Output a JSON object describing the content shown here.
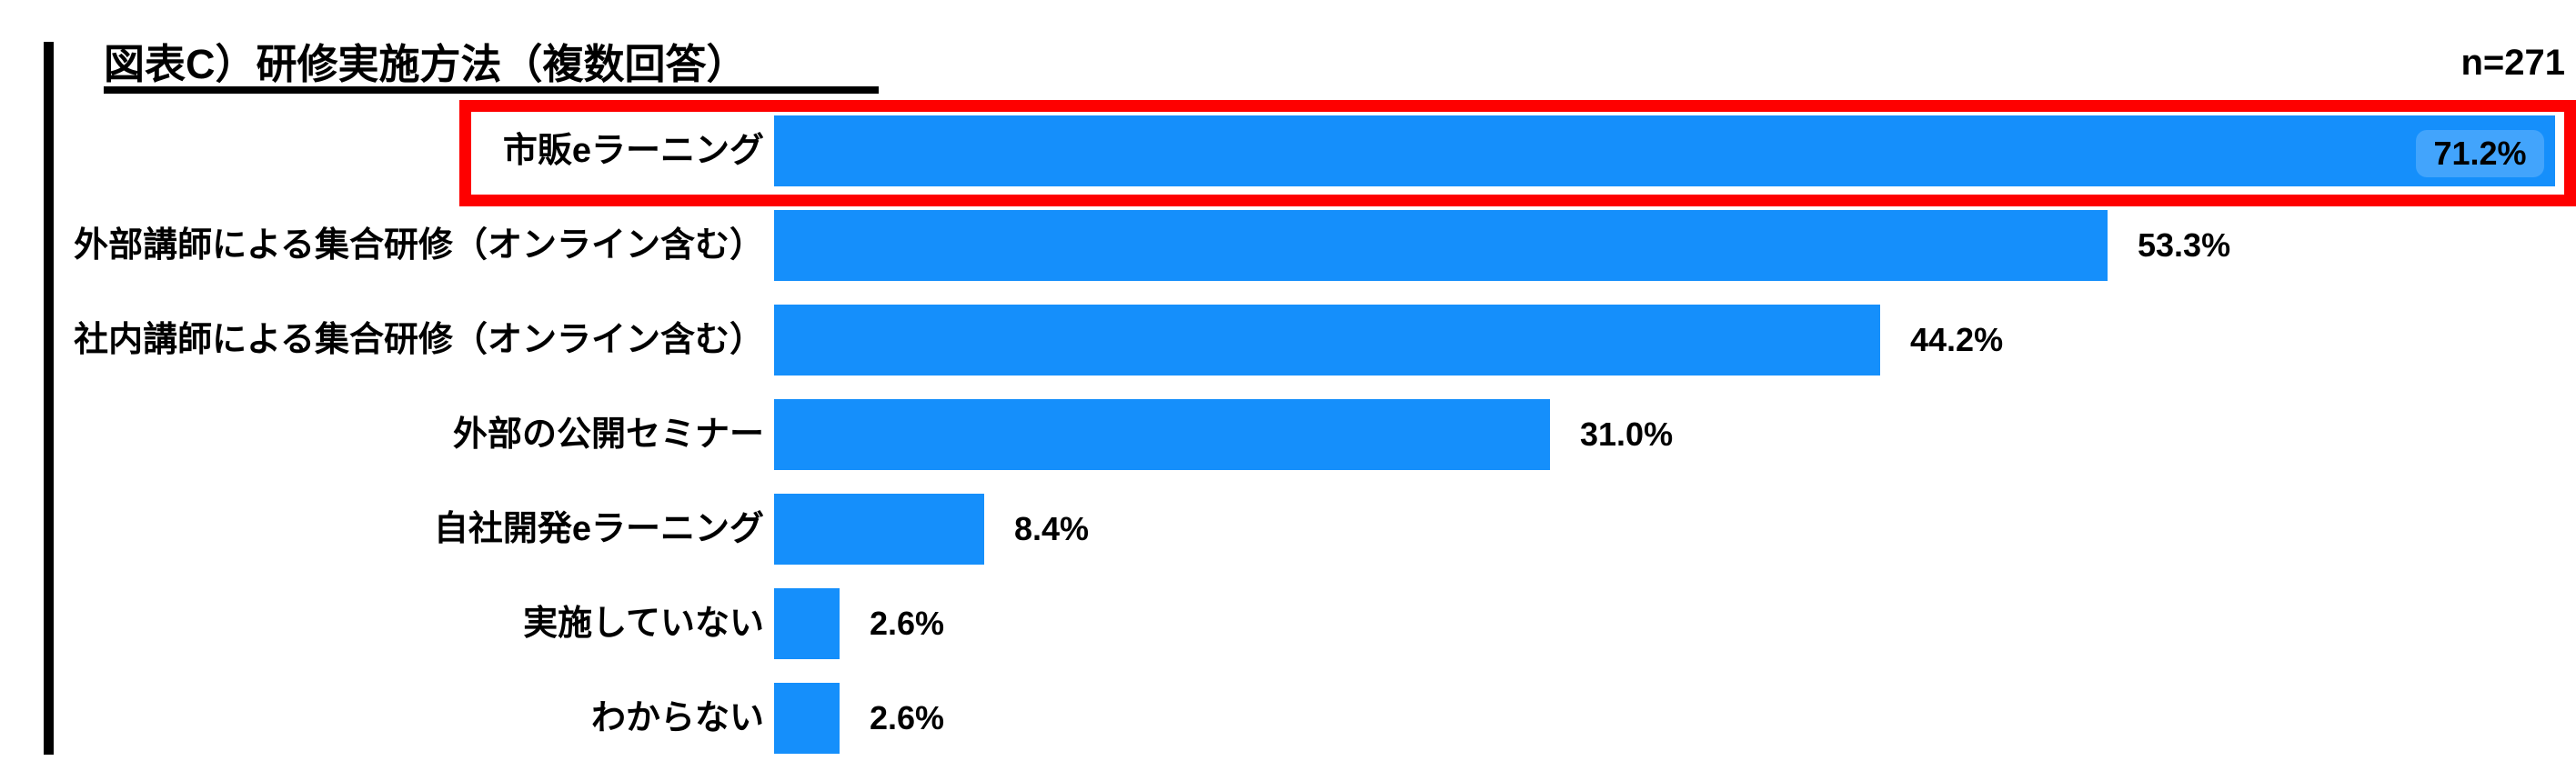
{
  "header": {
    "title": "図表C）研修実施方法（複数回答）",
    "sample_size": "n=271"
  },
  "chart_data": {
    "type": "bar",
    "orientation": "horizontal",
    "title": "図表C）研修実施方法（複数回答）",
    "sample_size": "n=271",
    "categories": [
      "市販eラーニング",
      "外部講師による集合研修（オンライン含む）",
      "社内講師による集合研修（オンライン含む）",
      "外部の公開セミナー",
      "自社開発eラーニング",
      "実施していない",
      "わからない"
    ],
    "values": [
      71.2,
      53.3,
      44.2,
      31.0,
      8.4,
      2.6,
      2.6
    ],
    "value_labels": [
      "71.2%",
      "53.3%",
      "44.2%",
      "31.0%",
      "8.4%",
      "2.6%",
      "2.6%"
    ],
    "xlim": [
      0,
      72
    ],
    "grid": false,
    "legend": false,
    "bar_color": "#158ffb",
    "text_color": "#000000",
    "highlight": {
      "index": 0,
      "category": "市販eラーニング",
      "box_color": "#fe0000",
      "value_chip_color": "#42a4fc",
      "value_label_position": "inside"
    }
  }
}
